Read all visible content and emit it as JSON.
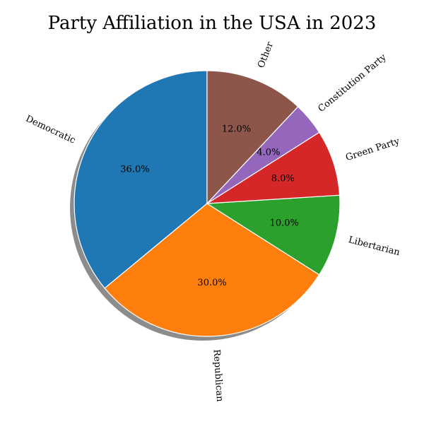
{
  "chart_data": {
    "type": "pie",
    "title": "Party Affiliation in the USA in 2023",
    "categories": [
      "Democratic",
      "Republican",
      "Libertarian",
      "Green Party",
      "Constitution Party",
      "Other"
    ],
    "values": [
      36.0,
      30.0,
      10.0,
      8.0,
      4.0,
      12.0
    ],
    "value_labels": [
      "36.0%",
      "30.0%",
      "10.0%",
      "8.0%",
      "4.0%",
      "12.0%"
    ],
    "colors": [
      "#1f77b4",
      "#ff7f0e",
      "#2ca02c",
      "#d62728",
      "#9467bd",
      "#8c564b"
    ],
    "start_angle_deg": 90,
    "direction": "counterclockwise",
    "shadow": true,
    "legend": "none"
  }
}
